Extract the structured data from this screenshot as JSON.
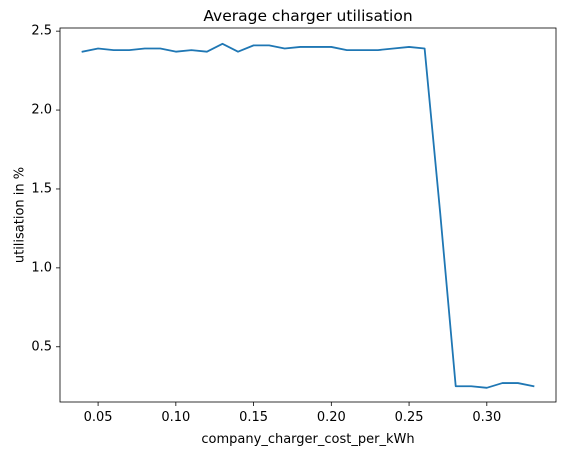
{
  "chart_data": {
    "type": "line",
    "title": "Average charger utilisation",
    "xlabel": "company_charger_cost_per_kWh",
    "ylabel": "utilisation in %",
    "xlim": [
      0.0255,
      0.3445
    ],
    "ylim": [
      0.15,
      2.52
    ],
    "xticks": [
      0.05,
      0.1,
      0.15,
      0.2,
      0.25,
      0.3
    ],
    "xtick_labels": [
      "0.05",
      "0.10",
      "0.15",
      "0.20",
      "0.25",
      "0.30"
    ],
    "yticks": [
      0.5,
      1.0,
      1.5,
      2.0,
      2.5
    ],
    "ytick_labels": [
      "0.5",
      "1.0",
      "1.5",
      "2.0",
      "2.5"
    ],
    "grid": false,
    "series": [
      {
        "color": "#1f77b4",
        "x": [
          0.04,
          0.05,
          0.06,
          0.07,
          0.08,
          0.09,
          0.1,
          0.11,
          0.12,
          0.13,
          0.14,
          0.15,
          0.16,
          0.17,
          0.18,
          0.19,
          0.2,
          0.21,
          0.22,
          0.23,
          0.24,
          0.25,
          0.26,
          0.27,
          0.28,
          0.29,
          0.3,
          0.31,
          0.32,
          0.33
        ],
        "y": [
          2.37,
          2.39,
          2.38,
          2.38,
          2.39,
          2.39,
          2.37,
          2.38,
          2.37,
          2.42,
          2.37,
          2.41,
          2.41,
          2.39,
          2.4,
          2.4,
          2.4,
          2.38,
          2.38,
          2.38,
          2.39,
          2.4,
          2.39,
          1.35,
          0.25,
          0.25,
          0.24,
          0.27,
          0.27,
          0.25
        ]
      }
    ]
  }
}
